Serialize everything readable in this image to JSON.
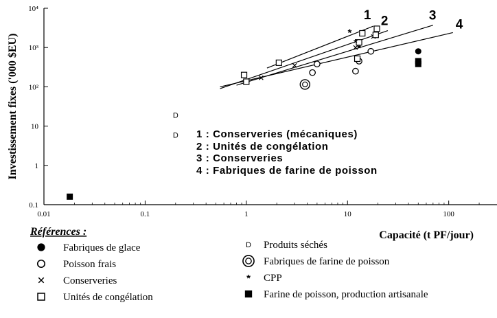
{
  "chart_data": {
    "type": "scatter",
    "title": "",
    "xlabel": "Capacité (t PF/jour)",
    "ylabel": "Investissement fixes ('000 $EU)",
    "xscale": "log",
    "yscale": "log",
    "xlim": [
      0.01,
      300
    ],
    "ylim": [
      0.1,
      10000
    ],
    "x_ticks": [
      "0.01",
      "0.1",
      "1",
      "10",
      "100"
    ],
    "y_ticks": [
      "0.1",
      "1",
      "10",
      "10²",
      "10³",
      "10⁴"
    ],
    "legend_title": "Références :",
    "legend_placement": "bottom",
    "annotations": [
      "1 : Conserveries (mécaniques)",
      "2 : Unités de congélation",
      "3 : Conserveries",
      "4 : Fabriques de farine de poisson"
    ],
    "lines": [
      {
        "label": "1",
        "x": [
          1.6,
          18
        ],
        "y": [
          300,
          3500
        ]
      },
      {
        "label": "2",
        "x": [
          0.55,
          25
        ],
        "y": [
          90,
          2700
        ]
      },
      {
        "label": "3",
        "x": [
          0.8,
          70
        ],
        "y": [
          110,
          3700
        ]
      },
      {
        "label": "4",
        "x": [
          0.55,
          110
        ],
        "y": [
          100,
          2400
        ]
      }
    ],
    "series": [
      {
        "name": "Fabriques de glace",
        "marker": "filled-circle",
        "x": [
          50
        ],
        "y": [
          800
        ]
      },
      {
        "name": "Poisson frais",
        "marker": "open-circle",
        "x": [
          4.5,
          5,
          12,
          13,
          17
        ],
        "y": [
          230,
          380,
          250,
          450,
          800
        ]
      },
      {
        "name": "Conserveries",
        "marker": "x",
        "x": [
          1.4,
          3,
          12,
          18
        ],
        "y": [
          170,
          350,
          1000,
          1900
        ]
      },
      {
        "name": "Unités de congélation",
        "marker": "open-square",
        "x": [
          0.95,
          1.0,
          2.1,
          12.5,
          13,
          14,
          19,
          19.5
        ],
        "y": [
          200,
          135,
          410,
          520,
          1350,
          2300,
          2100,
          3000
        ]
      },
      {
        "name": "Produits séchés",
        "marker": "D",
        "x": [
          0.2,
          0.2
        ],
        "y": [
          19,
          6
        ]
      },
      {
        "name": "Fabriques de farine de poisson",
        "marker": "ring",
        "x": [
          3.8
        ],
        "y": [
          115
        ]
      },
      {
        "name": "CPP",
        "marker": "asterisk",
        "x": [
          10.5,
          12,
          13
        ],
        "y": [
          2500,
          1400,
          1000
        ]
      },
      {
        "name": "Farine de poisson, production artisanale",
        "marker": "filled-square",
        "x": [
          0.018,
          50,
          50
        ],
        "y": [
          0.16,
          450,
          380
        ]
      }
    ]
  },
  "legend": {
    "left": [
      {
        "marker": "filled-circle",
        "label": "Fabriques de glace"
      },
      {
        "marker": "open-circle",
        "label": "Poisson frais"
      },
      {
        "marker": "x",
        "label": "Conserveries"
      },
      {
        "marker": "open-square",
        "label": "Unités de congélation"
      }
    ],
    "right": [
      {
        "marker": "D",
        "label": "Produits séchés"
      },
      {
        "marker": "ring",
        "label": "Fabriques de farine de poisson"
      },
      {
        "marker": "asterisk",
        "label": "CPP"
      },
      {
        "marker": "filled-square",
        "label": "Farine de poisson, production artisanale"
      }
    ]
  }
}
